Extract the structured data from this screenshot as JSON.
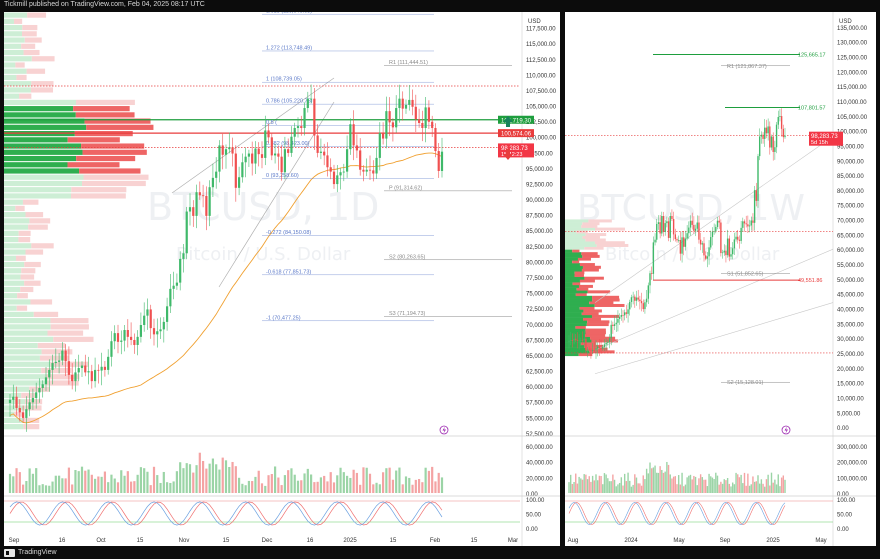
{
  "header": {
    "text": "Tickmill published on TradingView.com, Feb 04, 2025 08:17 UTC"
  },
  "footer": {
    "brand": "TradingView"
  },
  "colors": {
    "up": "#3fb96a",
    "down": "#f05050",
    "up_vol": "#9bd4a6",
    "down_vol": "#f4a3a3",
    "fib": "#5a78c8",
    "pivot": "#8a8a8a",
    "ma": "#f0a030",
    "green_level": "#1e9e3e",
    "red_level": "#e83c3c",
    "price_label": "#f23645",
    "profile_up": "#2fae4f",
    "profile_down": "#ee6565"
  },
  "icons": {
    "up_arrow": "arrow-up-icon",
    "down_arrow": "arrow-down-icon",
    "lightning": "lightning-icon"
  },
  "chart_data": [
    {
      "type": "candlestick",
      "symbol": "BTCUSD, 1D",
      "watermark": "BTCUSD, 1D",
      "watermark_sub": "Bitcoin / U.S. Dollar",
      "currency": "USD",
      "y_ticks": [
        "117,500.00",
        "115,000.00",
        "112,500.00",
        "110,000.00",
        "107,500.00",
        "105,000.00",
        "102,500.00",
        "100,000.00",
        "97,500.00",
        "95,000.00",
        "92,500.00",
        "90,000.00",
        "87,500.00",
        "85,000.00",
        "82,500.00",
        "80,000.00",
        "77,500.00",
        "75,000.00",
        "72,500.00",
        "70,000.00",
        "67,500.00",
        "65,000.00",
        "62,500.00",
        "60,000.00",
        "57,500.00",
        "55,000.00",
        "52,500.00"
      ],
      "x_ticks": [
        "Sep",
        "16",
        "Oct",
        "15",
        "Nov",
        "15",
        "Dec",
        "16",
        "2025",
        "15",
        "Feb",
        "15",
        "Mar"
      ],
      "current_price_label": "98,283.73",
      "current_price_sub": "15:42:23",
      "level_labels": {
        "green": "102,719.30",
        "red": "100,574.06"
      },
      "fib_labels": [
        "1.618 (119,646.63)",
        "1.272 (113,748.49)",
        "1 (108,739.05)",
        "0.786 (105,220.75)",
        "0.5 (",
        "0.382 (98,423.00)",
        "0 (93,258.60)",
        "-0.272 (84,150.08)",
        "-0.618 (77,851.73)",
        "-1 (70,477.25)"
      ],
      "pivot_labels": [
        "R2 (120,484.2)",
        "R1 (111,444.51)",
        "P (91,314.62)",
        "S2 (80,263.65)",
        "S3 (71,194.73)"
      ],
      "volume_ticks": [
        "60,000.00",
        "40,000.00",
        "20,000.00",
        "0.00"
      ],
      "osc_ticks": [
        "100.00",
        "50.00",
        "0.00"
      ],
      "closes": [
        57800,
        58300,
        56500,
        55800,
        54900,
        56300,
        57400,
        58100,
        59000,
        59700,
        60300,
        61400,
        62600,
        63700,
        63900,
        64100,
        65700,
        64000,
        61800,
        60800,
        62200,
        62900,
        63300,
        62200,
        62400,
        60800,
        62600,
        62500,
        63100,
        62600,
        64700,
        67200,
        68500,
        67100,
        67300,
        69000,
        67900,
        67400,
        66600,
        67900,
        69800,
        71300,
        72300,
        69300,
        68300,
        68800,
        69100,
        70300,
        72800,
        75600,
        76100,
        76600,
        80400,
        81300,
        88000,
        88700,
        87300,
        91100,
        90600,
        90500,
        87300,
        91900,
        93400,
        94400,
        98600,
        97100,
        98000,
        98300,
        97300,
        91800,
        93500,
        95900,
        96800,
        97300,
        95700,
        98100,
        97200,
        96600,
        101000,
        99900,
        97000,
        97300,
        96800,
        94300,
        98000,
        97400,
        100000,
        101400,
        101700,
        101400,
        104600,
        106100,
        106100,
        100200,
        97400,
        97600,
        97000,
        95100,
        94400,
        92400,
        93800,
        94300,
        94400,
        98000,
        102000,
        98600,
        97800,
        94700,
        94400,
        94700,
        94600,
        94100,
        96600,
        100600,
        99700,
        104100,
        102300,
        101500,
        104600,
        106100,
        104500,
        105100,
        105900,
        104800,
        102800,
        102200,
        101400,
        104700,
        102400,
        101400,
        97700,
        94500,
        97600
      ],
      "volume_axis_max": 60000
    },
    {
      "type": "candlestick",
      "symbol": "BTCUSD, 1W",
      "watermark": "BTCUSD, 1W",
      "watermark_sub": "Bitcoin / U.S. Dollar",
      "currency": "USD",
      "y_ticks": [
        "135,000.00",
        "130,000.00",
        "125,000.00",
        "120,000.00",
        "115,000.00",
        "110,000.00",
        "105,000.00",
        "100,000.00",
        "95,000.00",
        "90,000.00",
        "85,000.00",
        "80,000.00",
        "75,000.00",
        "70,000.00",
        "65,000.00",
        "60,000.00",
        "55,000.00",
        "50,000.00",
        "45,000.00",
        "40,000.00",
        "35,000.00",
        "30,000.00",
        "25,000.00",
        "20,000.00",
        "15,000.00",
        "10,000.00",
        "5,000.00",
        "0.00"
      ],
      "x_ticks": [
        "Aug",
        "2024",
        "May",
        "Sep",
        "2025",
        "May"
      ],
      "current_price_label": "98,283.73",
      "current_price_sub": "5d 15h",
      "level_labels": {
        "top_green": "125,665.17",
        "mid_green": "107,801.57",
        "red": "49,551.86"
      },
      "pivot_labels": [
        "R1 (121,867.37)",
        "S1 (51,852.65)",
        "S2 (15,128.01)"
      ],
      "volume_ticks": [
        "300,000.00",
        "200,000.00",
        "100,000.00",
        "0.00"
      ],
      "osc_ticks": [
        "100.00",
        "50.00",
        "0.00"
      ],
      "closes": [
        29100,
        29300,
        29200,
        29800,
        29400,
        29100,
        29200,
        29400,
        29300,
        29800,
        26000,
        26200,
        26100,
        25800,
        26000,
        25900,
        26500,
        27200,
        26700,
        26400,
        27000,
        27900,
        28400,
        28700,
        30000,
        34500,
        34100,
        34700,
        35200,
        36500,
        37200,
        37800,
        37700,
        38700,
        38200,
        39700,
        42200,
        43800,
        44000,
        42600,
        43700,
        43000,
        42500,
        41800,
        39800,
        42100,
        43300,
        47800,
        51900,
        51700,
        62300,
        63200,
        68500,
        69100,
        65300,
        71200,
        65800,
        68800,
        69400,
        63800,
        71200,
        70200,
        65000,
        63400,
        63000,
        63100,
        58500,
        64000,
        60800,
        63600,
        65400,
        67300,
        69600,
        68200,
        66200,
        66900,
        69000,
        63200,
        61600,
        62000,
        57900,
        56800,
        57600,
        60600,
        64100,
        65900,
        66100,
        67500,
        69600,
        69000,
        58700,
        58900,
        59500,
        58000,
        63600,
        57500,
        58300,
        60300,
        63300,
        64200,
        63200,
        62800,
        67200,
        69400,
        68700,
        68400,
        67700,
        68000,
        69700,
        68900,
        79900,
        76300,
        91400,
        98000,
        98600,
        97200,
        101000,
        99100,
        101400,
        94300,
        98000,
        92800,
        94400,
        102000,
        104600,
        104900,
        100600,
        97800,
        98300
      ],
      "volume_axis_max": 300000
    }
  ]
}
